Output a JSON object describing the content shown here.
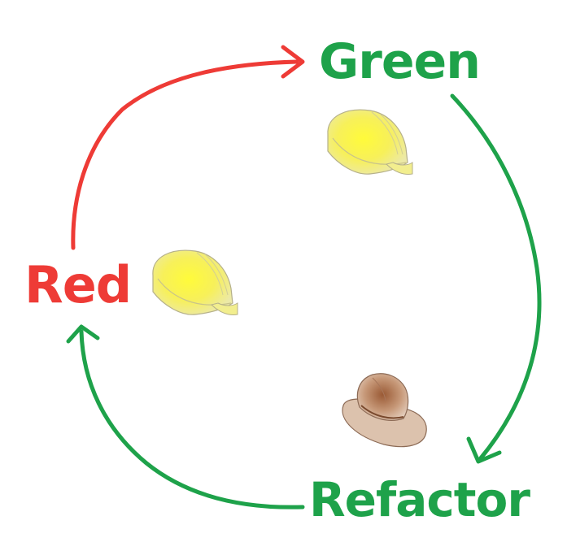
{
  "stages": {
    "green": "Green",
    "red": "Red",
    "refactor": "Refactor"
  },
  "colors": {
    "red": "#ee3b36",
    "green": "#1ea24a",
    "hard_hat": "#f4ee3a",
    "fedora": "#b9876a"
  },
  "icons": {
    "red_to_green": "hard-hat-icon",
    "green_to_refactor": "hard-hat-icon",
    "refactor_to_red": "fedora-hat-icon"
  }
}
